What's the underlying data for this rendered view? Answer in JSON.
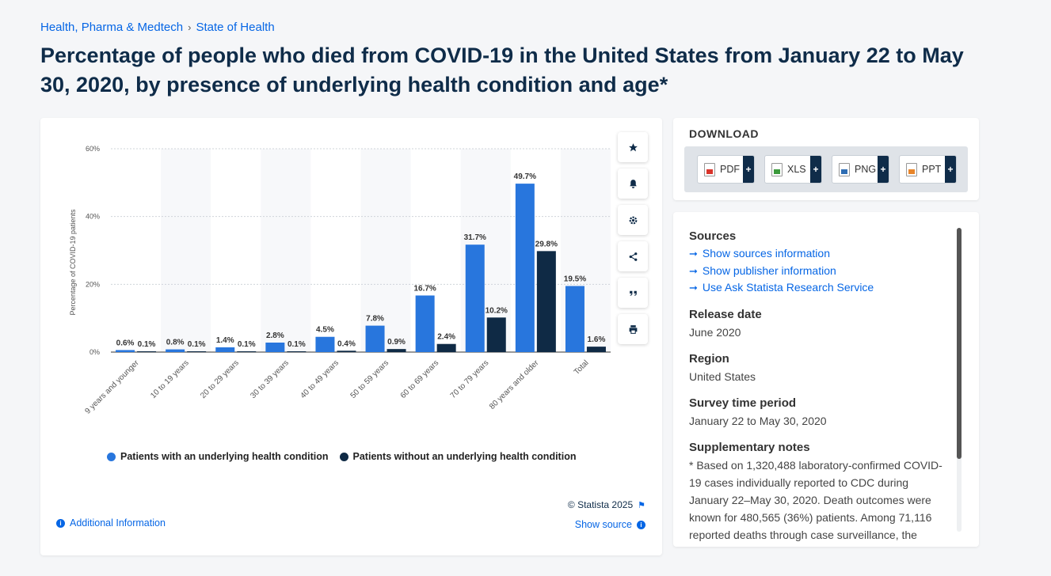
{
  "breadcrumb": {
    "items": [
      "Health, Pharma & Medtech",
      "State of Health"
    ],
    "separator": "›"
  },
  "title": "Percentage of people who died from COVID-19 in the United States from January 22 to May 30, 2020, by presence of underlying health condition and age*",
  "tools": [
    "star-icon",
    "bell-icon",
    "gear-icon",
    "share-icon",
    "quote-icon",
    "print-icon"
  ],
  "chart_data": {
    "type": "bar",
    "ylabel": "Percentage of COVID-19 patients",
    "xlabel": "",
    "ylim": [
      0,
      60
    ],
    "yticks": [
      "0%",
      "20%",
      "40%",
      "60%"
    ],
    "ytick_values": [
      0,
      20,
      40,
      60
    ],
    "grid": true,
    "categories": [
      "9 years and younger",
      "10 to 19 years",
      "20 to 29 years",
      "30 to 39 years",
      "40 to 49 years",
      "50 to 59 years",
      "60 to 69 years",
      "70 to 79 years",
      "80 years and older",
      "Total"
    ],
    "series": [
      {
        "name": "Patients with an underlying health condition",
        "color": "#2876dd",
        "values": [
          0.6,
          0.8,
          1.4,
          2.8,
          4.5,
          7.8,
          16.7,
          31.7,
          49.7,
          19.5
        ],
        "labels": [
          "0.6%",
          "0.8%",
          "1.4%",
          "2.8%",
          "4.5%",
          "7.8%",
          "16.7%",
          "31.7%",
          "49.7%",
          "19.5%"
        ]
      },
      {
        "name": "Patients without an underlying health condition",
        "color": "#0f2a45",
        "values": [
          0.1,
          0.1,
          0.1,
          0.1,
          0.4,
          0.9,
          2.4,
          10.2,
          29.8,
          1.6
        ],
        "labels": [
          "0.1%",
          "0.1%",
          "0.1%",
          "0.1%",
          "0.4%",
          "0.9%",
          "2.4%",
          "10.2%",
          "29.8%",
          "1.6%"
        ]
      }
    ],
    "legend_position": "bottom"
  },
  "chart_footer": {
    "copyright": "© Statista 2025",
    "additional_info": "Additional Information",
    "show_source": "Show source"
  },
  "download": {
    "title": "DOWNLOAD",
    "buttons": [
      {
        "label": "PDF",
        "color": "#d9342b"
      },
      {
        "label": "XLS",
        "color": "#3c9a3c"
      },
      {
        "label": "PNG",
        "color": "#2f6db3"
      },
      {
        "label": "PPT",
        "color": "#e8852a"
      }
    ],
    "plus": "+"
  },
  "info": {
    "sources_h": "Sources",
    "sources_links": [
      "Show sources information",
      "Show publisher information",
      "Use Ask Statista Research Service"
    ],
    "release_h": "Release date",
    "release_v": "June 2020",
    "region_h": "Region",
    "region_v": "United States",
    "survey_h": "Survey time period",
    "survey_v": "January 22 to May 30, 2020",
    "notes_h": "Supplementary notes",
    "notes_v": "* Based on 1,320,488 laboratory-confirmed COVID-19 cases individually reported to CDC during January 22–May 30, 2020. Death outcomes were known for 480,565 (36%) patients. Among 71,116 reported deaths through case surveillance, the"
  }
}
